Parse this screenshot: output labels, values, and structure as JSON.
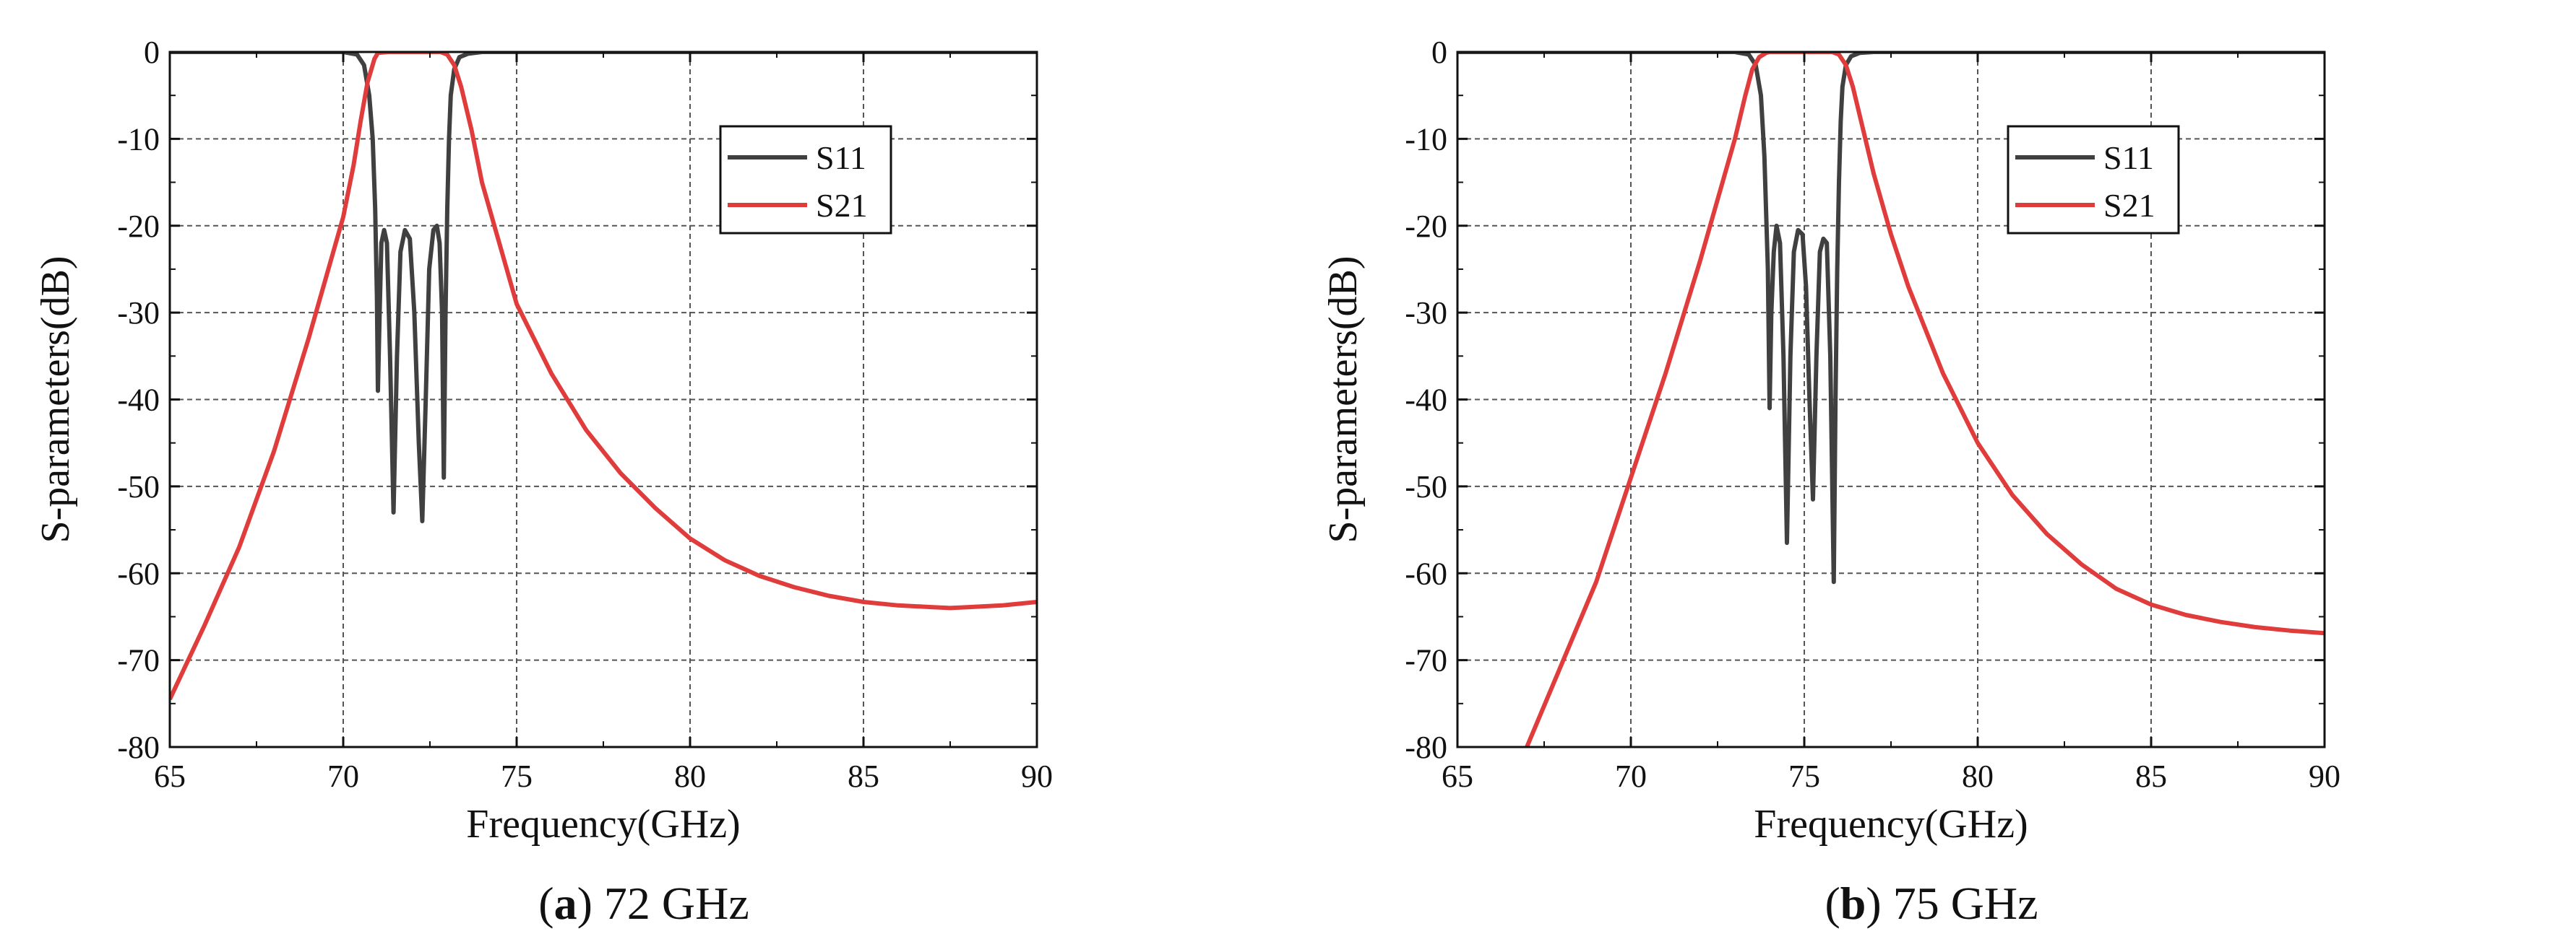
{
  "chart_data": [
    {
      "type": "line",
      "panel_label": "a",
      "caption": "72 GHz",
      "xlabel": "Frequency(GHz)",
      "ylabel": "S-parameters(dB)",
      "xlim": [
        65,
        90
      ],
      "ylim": [
        -80,
        0
      ],
      "xticks": [
        65,
        70,
        75,
        80,
        85,
        90
      ],
      "yticks": [
        0,
        -10,
        -20,
        -30,
        -40,
        -50,
        -60,
        -70,
        -80
      ],
      "grid": true,
      "legend_position": "top-right",
      "series": [
        {
          "name": "S11",
          "color": "#404040",
          "x": [
            65,
            70,
            70.4,
            70.6,
            70.75,
            70.85,
            70.92,
            70.97,
            71.0,
            71.05,
            71.1,
            71.18,
            71.26,
            71.35,
            71.45,
            71.55,
            71.65,
            71.78,
            71.92,
            72.05,
            72.18,
            72.28,
            72.38,
            72.48,
            72.6,
            72.7,
            72.78,
            72.85,
            72.9,
            72.95,
            73.0,
            73.05,
            73.1,
            73.2,
            73.35,
            73.6,
            74,
            75,
            80,
            85,
            90
          ],
          "values": [
            0,
            0,
            -0.3,
            -1.5,
            -5,
            -10,
            -18,
            -28,
            -39,
            -30,
            -22,
            -20.5,
            -22,
            -35,
            -53,
            -35,
            -23,
            -20.5,
            -21.5,
            -30,
            -45,
            -54,
            -40,
            -25,
            -20.5,
            -20,
            -22,
            -30,
            -49,
            -30,
            -18,
            -10,
            -5,
            -2,
            -0.6,
            -0.2,
            0,
            0,
            0,
            0,
            0
          ]
        },
        {
          "name": "S21",
          "color": "#e03c3c",
          "x": [
            65,
            66,
            67,
            68,
            69,
            69.5,
            70,
            70.3,
            70.5,
            70.7,
            70.9,
            71.0,
            71.3,
            72,
            72.8,
            73.0,
            73.2,
            73.4,
            73.7,
            74,
            74.5,
            75,
            76,
            77,
            78,
            79,
            80,
            81,
            82,
            83,
            84,
            85,
            86,
            87,
            87.5,
            88,
            89,
            90
          ],
          "values": [
            -74.5,
            -66,
            -57,
            -46,
            -33,
            -26,
            -19,
            -13,
            -8,
            -3.5,
            -0.8,
            -0.1,
            0,
            0,
            0,
            -0.3,
            -1.5,
            -4,
            -9,
            -15,
            -22,
            -29,
            -37,
            -43.5,
            -48.5,
            -52.5,
            -56,
            -58.5,
            -60.3,
            -61.6,
            -62.6,
            -63.3,
            -63.7,
            -63.9,
            -64,
            -63.9,
            -63.7,
            -63.3
          ]
        }
      ]
    },
    {
      "type": "line",
      "panel_label": "b",
      "caption": "75 GHz",
      "xlabel": "Frequency(GHz)",
      "ylabel": "S-parameters(dB)",
      "xlim": [
        65,
        90
      ],
      "ylim": [
        -80,
        0
      ],
      "xticks": [
        65,
        70,
        75,
        80,
        85,
        90
      ],
      "yticks": [
        0,
        -10,
        -20,
        -30,
        -40,
        -50,
        -60,
        -70,
        -80
      ],
      "grid": true,
      "legend_position": "top-right",
      "series": [
        {
          "name": "S11",
          "color": "#404040",
          "x": [
            65,
            73,
            73.4,
            73.6,
            73.75,
            73.85,
            73.95,
            74.0,
            74.05,
            74.12,
            74.2,
            74.3,
            74.4,
            74.5,
            74.6,
            74.7,
            74.82,
            74.95,
            75.05,
            75.15,
            75.25,
            75.35,
            75.45,
            75.55,
            75.65,
            75.75,
            75.85,
            75.9,
            75.95,
            76.0,
            76.05,
            76.1,
            76.2,
            76.35,
            76.6,
            77,
            80,
            85,
            90
          ],
          "values": [
            0,
            0,
            -0.3,
            -1.5,
            -5,
            -12,
            -25,
            -41,
            -30,
            -23,
            -20,
            -22,
            -35,
            -56.5,
            -35,
            -23,
            -20.5,
            -21,
            -27,
            -40,
            -51.5,
            -35,
            -23,
            -21.5,
            -22,
            -35,
            -61,
            -40,
            -25,
            -15,
            -8,
            -4,
            -1.5,
            -0.5,
            -0.1,
            0,
            0,
            0,
            0
          ]
        },
        {
          "name": "S21",
          "color": "#e03c3c",
          "x": [
            67,
            68,
            69,
            70,
            71,
            72,
            72.5,
            73,
            73.3,
            73.5,
            73.7,
            73.9,
            74.0,
            74.3,
            75,
            75.8,
            76.0,
            76.2,
            76.4,
            76.7,
            77,
            77.5,
            78,
            79,
            80,
            81,
            82,
            83,
            84,
            85,
            86,
            87,
            88,
            89,
            90
          ],
          "values": [
            -80,
            -70.5,
            -61,
            -49,
            -37,
            -24,
            -17,
            -10,
            -5,
            -2,
            -0.6,
            -0.1,
            0,
            0,
            0,
            0,
            -0.3,
            -1.5,
            -4,
            -9,
            -14,
            -21,
            -27,
            -37,
            -45,
            -51,
            -55.5,
            -59,
            -61.8,
            -63.6,
            -64.8,
            -65.6,
            -66.2,
            -66.6,
            -66.9
          ]
        }
      ]
    }
  ]
}
